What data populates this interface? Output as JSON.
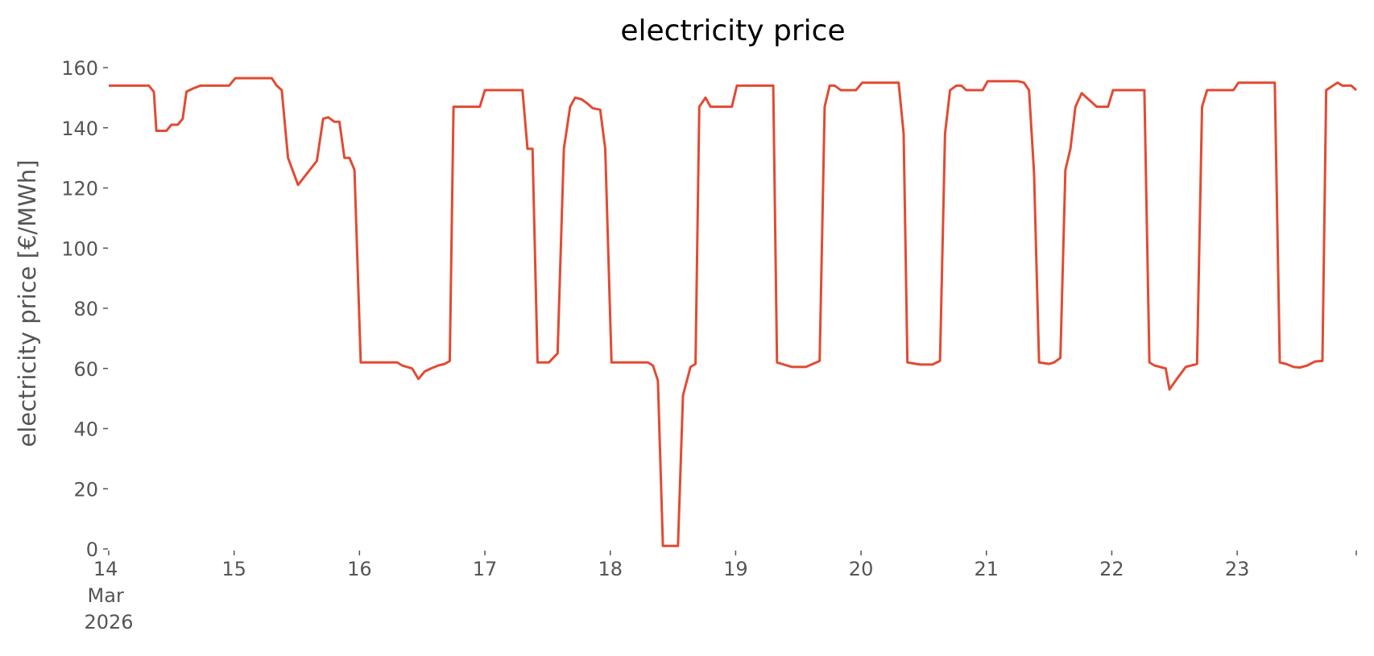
{
  "chart_data": {
    "type": "line",
    "title": "electricity price",
    "ylabel": "electricity price [€/MWh]",
    "x": [
      14.0,
      14.32,
      14.36,
      14.38,
      14.46,
      14.5,
      14.55,
      14.59,
      14.62,
      14.67,
      14.73,
      14.96,
      15.01,
      15.3,
      15.34,
      15.38,
      15.43,
      15.51,
      15.66,
      15.71,
      15.75,
      15.8,
      15.84,
      15.88,
      15.92,
      15.96,
      16.01,
      16.3,
      16.34,
      16.42,
      16.47,
      16.52,
      16.57,
      16.63,
      16.68,
      16.72,
      16.75,
      16.84,
      16.96,
      17.0,
      17.3,
      17.34,
      17.38,
      17.42,
      17.51,
      17.58,
      17.63,
      17.68,
      17.72,
      17.77,
      17.82,
      17.86,
      17.92,
      17.96,
      18.01,
      18.3,
      18.34,
      18.38,
      18.42,
      18.54,
      18.58,
      18.64,
      18.68,
      18.71,
      18.76,
      18.8,
      18.97,
      19.01,
      19.3,
      19.33,
      19.37,
      19.45,
      19.56,
      19.67,
      19.71,
      19.75,
      19.79,
      19.84,
      19.96,
      20.01,
      20.3,
      20.34,
      20.37,
      20.47,
      20.57,
      20.63,
      20.67,
      20.71,
      20.76,
      20.8,
      20.84,
      20.97,
      21.01,
      21.25,
      21.3,
      21.34,
      21.38,
      21.42,
      21.5,
      21.54,
      21.59,
      21.63,
      21.67,
      21.71,
      21.76,
      21.8,
      21.88,
      21.97,
      22.01,
      22.26,
      22.3,
      22.34,
      22.43,
      22.46,
      22.51,
      22.59,
      22.68,
      22.72,
      22.76,
      22.97,
      23.01,
      23.3,
      23.34,
      23.39,
      23.45,
      23.5,
      23.56,
      23.62,
      23.68,
      23.71,
      23.8,
      23.84,
      23.91,
      23.95
    ],
    "series": [
      {
        "name": "electricity price",
        "color": "#e24a33",
        "values": [
          154,
          154,
          152,
          139,
          139,
          141,
          141,
          143,
          152,
          153,
          154,
          154,
          156.5,
          156.5,
          154,
          152.5,
          130,
          121,
          129,
          143,
          143.5,
          142,
          142,
          130,
          130,
          126,
          62,
          62,
          61,
          60,
          56.5,
          59,
          60,
          61,
          61.5,
          62.5,
          147,
          147,
          147,
          152.5,
          152.5,
          133,
          133,
          62,
          62,
          65,
          133,
          147,
          150,
          149.5,
          148,
          146.5,
          146,
          133,
          62,
          62,
          61,
          56,
          1,
          1,
          51,
          60.5,
          61.5,
          147,
          150,
          147,
          147,
          154,
          154,
          62,
          61.5,
          60.5,
          60.5,
          62.5,
          147,
          154,
          154,
          152.5,
          152.5,
          155,
          155,
          138,
          62,
          61.3,
          61.3,
          62.5,
          138,
          152.5,
          154,
          154,
          152.5,
          152.5,
          155.5,
          155.5,
          155,
          152.5,
          125,
          62,
          61.5,
          62,
          63.5,
          126,
          133,
          147,
          151.5,
          150,
          147,
          147,
          152.5,
          152.5,
          62,
          61,
          60,
          53,
          56,
          60.5,
          61.5,
          147,
          152.5,
          152.5,
          155,
          155,
          62,
          61.5,
          60.5,
          60.3,
          61,
          62.3,
          62.5,
          152.5,
          155,
          154,
          154,
          152.5
        ]
      }
    ],
    "xlim": [
      14,
      23.95
    ],
    "xticks": [
      {
        "value": 14,
        "label": "14 Mar 2026"
      },
      15,
      16,
      17,
      18,
      19,
      20,
      21,
      22,
      23
    ],
    "ylim": [
      0,
      160
    ],
    "yticks": [
      0,
      20,
      40,
      60,
      80,
      100,
      120,
      140,
      160
    ],
    "grid": false
  }
}
